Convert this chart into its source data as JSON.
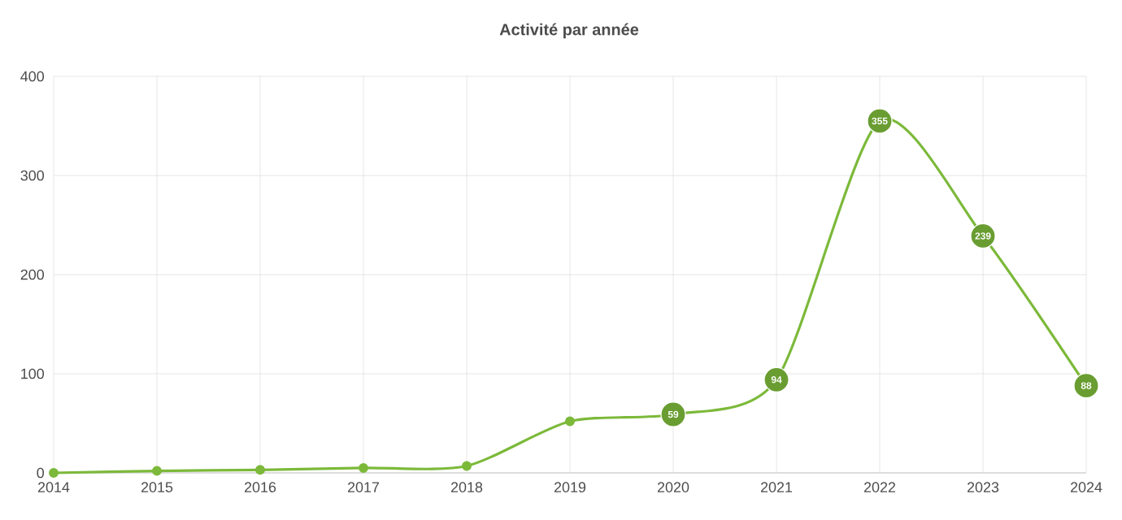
{
  "chart_data": {
    "type": "line",
    "title": "Activité par année",
    "categories": [
      "2014",
      "2015",
      "2016",
      "2017",
      "2018",
      "2019",
      "2020",
      "2021",
      "2022",
      "2023",
      "2024"
    ],
    "values": [
      0,
      2,
      3,
      5,
      7,
      52,
      59,
      94,
      355,
      239,
      88
    ],
    "value_labels": [
      null,
      null,
      null,
      null,
      null,
      null,
      "59",
      "94",
      "355",
      "239",
      "88"
    ],
    "color": "#7cb93a",
    "ylim": [
      0,
      400
    ],
    "yticks": [
      0,
      100,
      200,
      300,
      400
    ],
    "grid": true,
    "marker": "circle",
    "line_style": "solid"
  }
}
